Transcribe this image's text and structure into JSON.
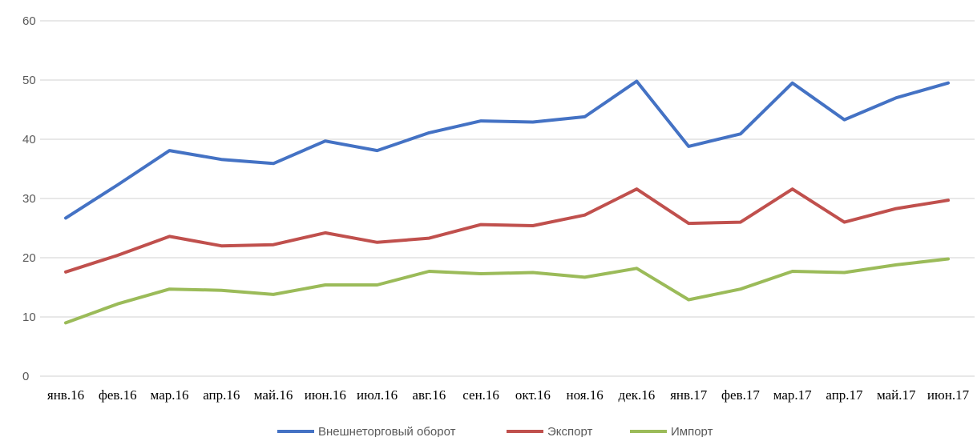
{
  "chart_data": {
    "type": "line",
    "title": "",
    "xlabel": "",
    "ylabel": "",
    "ylim": [
      0,
      60
    ],
    "yticks": [
      0,
      10,
      20,
      30,
      40,
      50,
      60
    ],
    "grid": "horizontal",
    "legend_position": "bottom",
    "categories": [
      "янв.16",
      "фев.16",
      "мар.16",
      "апр.16",
      "май.16",
      "июн.16",
      "июл.16",
      "авг.16",
      "сен.16",
      "окт.16",
      "ноя.16",
      "дек.16",
      "янв.17",
      "фев.17",
      "мар.17",
      "апр.17",
      "май.17",
      "июн.17"
    ],
    "series": [
      {
        "name": "Внешнеторговый оборот",
        "color": "#4472C4",
        "values": [
          26.7,
          32.3,
          38.1,
          36.6,
          35.9,
          39.7,
          38.1,
          41.1,
          43.1,
          42.9,
          43.8,
          49.8,
          38.8,
          40.9,
          49.5,
          43.3,
          47.0,
          49.5
        ]
      },
      {
        "name": "Экспорт",
        "color": "#C0504D",
        "values": [
          17.6,
          20.4,
          23.6,
          22.0,
          22.2,
          24.2,
          22.6,
          23.3,
          25.6,
          25.4,
          27.2,
          31.6,
          25.8,
          26.0,
          31.6,
          26.0,
          28.3,
          29.7
        ]
      },
      {
        "name": "Импорт",
        "color": "#9BBB59",
        "values": [
          9.0,
          12.2,
          14.7,
          14.5,
          13.8,
          15.4,
          15.4,
          17.7,
          17.3,
          17.5,
          16.7,
          18.2,
          12.9,
          14.7,
          17.7,
          17.5,
          18.8,
          19.8
        ]
      }
    ]
  }
}
